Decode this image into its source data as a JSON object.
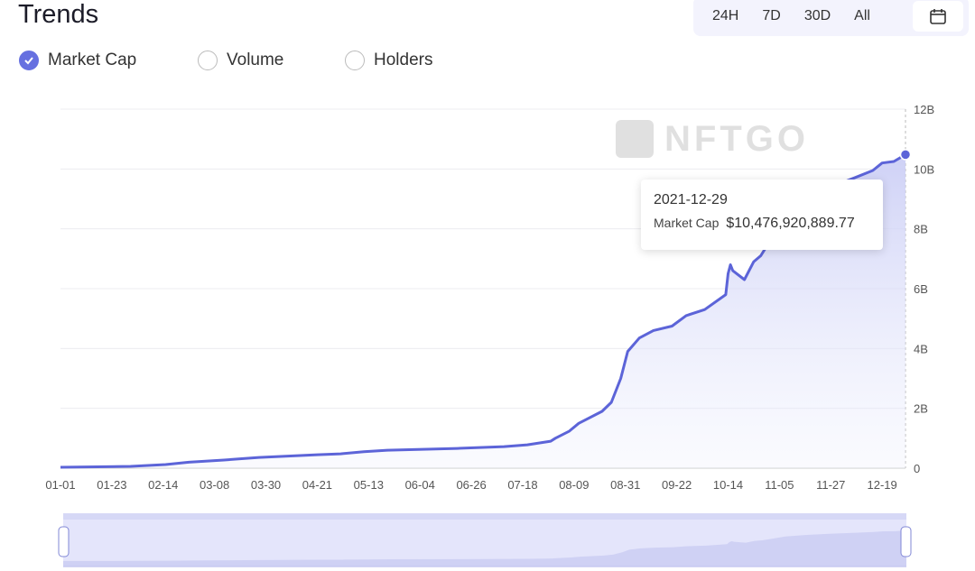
{
  "header": {
    "title": "Trends"
  },
  "time_tabs": [
    "24H",
    "7D",
    "30D",
    "All"
  ],
  "metrics": [
    {
      "label": "Market Cap",
      "checked": true
    },
    {
      "label": "Volume",
      "checked": false
    },
    {
      "label": "Holders",
      "checked": false
    }
  ],
  "watermark": "NFTGO",
  "tooltip": {
    "date": "2021-12-29",
    "label": "Market Cap",
    "value": "$10,476,920,889.77"
  },
  "colors": {
    "line": "#5c64d8",
    "accent": "#6670e0"
  },
  "chart_data": {
    "type": "area",
    "title": "Market Cap",
    "x_unit": "days since 2021-01-01",
    "ylabel": "",
    "xlabel": "",
    "ylim": [
      0,
      12
    ],
    "y_ticks": [
      "0",
      "2B",
      "4B",
      "6B",
      "8B",
      "10B",
      "12B"
    ],
    "x_tick_labels": [
      "01-01",
      "01-23",
      "02-14",
      "03-08",
      "03-30",
      "04-21",
      "05-13",
      "06-04",
      "06-26",
      "07-18",
      "08-09",
      "08-31",
      "09-22",
      "10-14",
      "11-05",
      "11-27",
      "12-19"
    ],
    "x_range": [
      0,
      362
    ],
    "grid": true,
    "series": [
      {
        "name": "Market Cap (B USD)",
        "points": [
          [
            0,
            0.03
          ],
          [
            30,
            0.06
          ],
          [
            45,
            0.12
          ],
          [
            55,
            0.2
          ],
          [
            70,
            0.27
          ],
          [
            85,
            0.36
          ],
          [
            110,
            0.45
          ],
          [
            120,
            0.48
          ],
          [
            130,
            0.55
          ],
          [
            140,
            0.6
          ],
          [
            170,
            0.66
          ],
          [
            190,
            0.72
          ],
          [
            200,
            0.78
          ],
          [
            210,
            0.9
          ],
          [
            212,
            1.0
          ],
          [
            218,
            1.24
          ],
          [
            222,
            1.5
          ],
          [
            232,
            1.9
          ],
          [
            236,
            2.2
          ],
          [
            240,
            3.0
          ],
          [
            243,
            3.9
          ],
          [
            248,
            4.35
          ],
          [
            254,
            4.6
          ],
          [
            262,
            4.75
          ],
          [
            268,
            5.1
          ],
          [
            276,
            5.3
          ],
          [
            285,
            5.8
          ],
          [
            293,
            6.3
          ],
          [
            286,
            6.5
          ],
          [
            287,
            6.8
          ],
          [
            288,
            6.6
          ],
          [
            297,
            6.9
          ],
          [
            300,
            7.1
          ],
          [
            304,
            7.6
          ],
          [
            310,
            8.4
          ],
          [
            320,
            9.0
          ],
          [
            330,
            9.4
          ],
          [
            340,
            9.7
          ],
          [
            348,
            9.95
          ],
          [
            352,
            10.2
          ],
          [
            357,
            10.25
          ],
          [
            362,
            10.48
          ]
        ]
      }
    ]
  }
}
